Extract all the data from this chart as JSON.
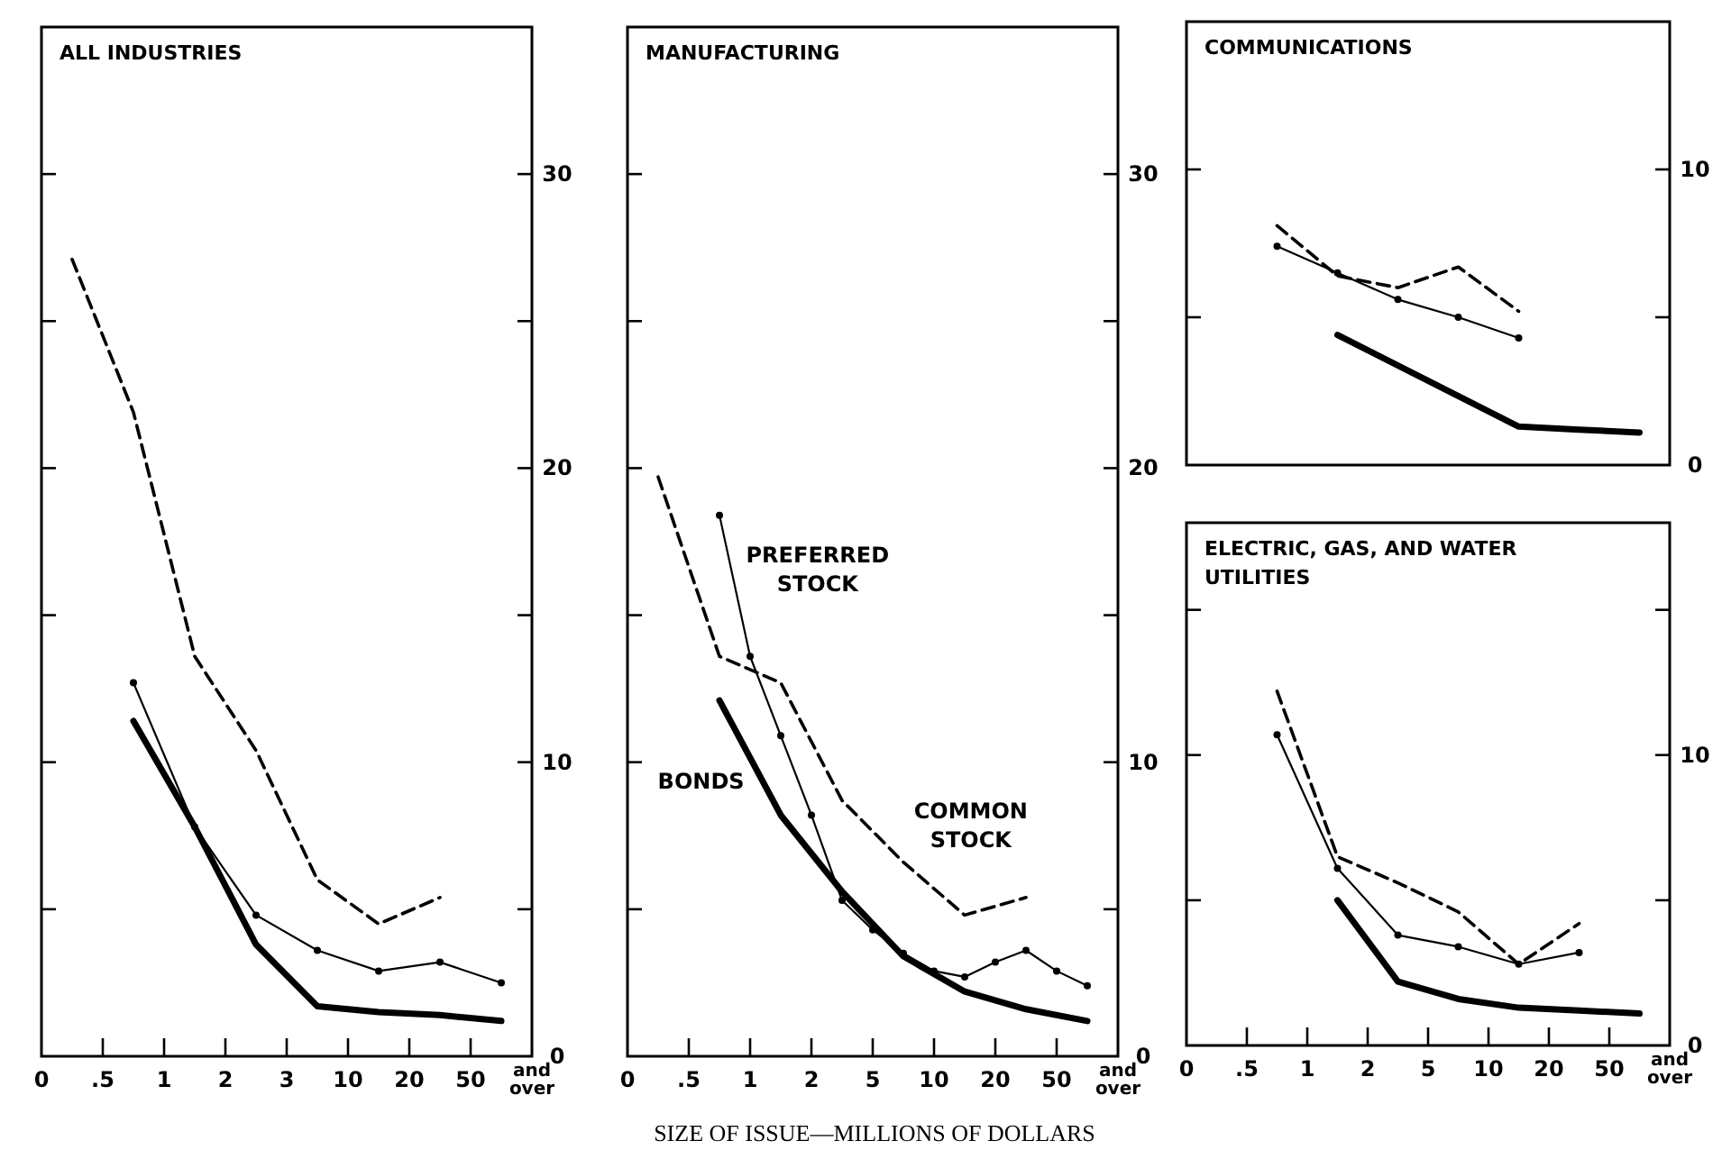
{
  "chart_data": [
    {
      "type": "line",
      "title": "ALL INDUSTRIES",
      "categories": [
        "0",
        null,
        ".5",
        null,
        "1",
        null,
        "2",
        null,
        "3",
        null,
        "10",
        null,
        "20",
        null,
        "50",
        null,
        "and over"
      ],
      "ylim": [
        0,
        35
      ],
      "yticks": [
        0,
        {
          "value": 5,
          "label": null
        },
        10,
        {
          "value": 15,
          "label": null
        },
        20,
        {
          "value": 25,
          "label": null
        },
        30
      ],
      "grid": false,
      "series": [
        {
          "color": "#000000",
          "line_style": "dashed",
          "values": [
            null,
            27.1,
            null,
            21.9,
            null,
            13.6,
            null,
            10.4,
            null,
            6.0,
            null,
            4.5,
            null,
            5.4,
            null,
            null,
            null
          ]
        },
        {
          "color": "#000000",
          "line_style": "solid",
          "marker": "circle",
          "values": [
            null,
            null,
            null,
            12.7,
            null,
            7.8,
            null,
            4.8,
            null,
            3.6,
            null,
            2.9,
            null,
            3.2,
            null,
            2.5,
            null
          ]
        },
        {
          "color": "#000000",
          "line_style": "solid",
          "values": [
            null,
            null,
            null,
            11.4,
            null,
            7.8,
            null,
            3.8,
            null,
            1.7,
            null,
            1.5,
            null,
            1.4,
            null,
            1.2,
            null
          ]
        }
      ]
    },
    {
      "type": "line",
      "title": "MANUFACTURING",
      "xlabel": "SIZE OF ISSUE—MILLIONS OF DOLLARS",
      "categories": [
        "0",
        null,
        ".5",
        null,
        "1",
        null,
        "2",
        null,
        "5",
        null,
        "10",
        null,
        "20",
        null,
        "50",
        null,
        "and over"
      ],
      "ylim": [
        0,
        35
      ],
      "yticks": [
        0,
        {
          "value": 5,
          "label": null
        },
        10,
        {
          "value": 15,
          "label": null
        },
        20,
        {
          "value": 25,
          "label": null
        },
        30
      ],
      "grid": false,
      "series": [
        {
          "name": "COMMON STOCK",
          "color": "#000000",
          "line_style": "dashed",
          "values": [
            null,
            19.7,
            null,
            13.6,
            null,
            12.7,
            null,
            8.7,
            null,
            6.6,
            null,
            4.8,
            null,
            5.4,
            null,
            null,
            null
          ]
        },
        {
          "name": "PREFERRED STOCK",
          "color": "#000000",
          "line_style": "solid",
          "marker": "circle",
          "values": [
            null,
            null,
            null,
            18.4,
            13.6,
            10.9,
            8.2,
            5.3,
            4.3,
            3.5,
            2.9,
            2.7,
            3.2,
            3.6,
            2.9,
            2.4,
            null
          ]
        },
        {
          "name": "BONDS",
          "color": "#000000",
          "line_style": "solid",
          "values": [
            null,
            null,
            null,
            12.1,
            null,
            8.2,
            null,
            5.6,
            null,
            3.4,
            null,
            2.2,
            null,
            1.6,
            null,
            1.2,
            null
          ]
        }
      ]
    },
    {
      "type": "line",
      "title": "COMMUNICATIONS",
      "categories": [
        null,
        null,
        null,
        null,
        null,
        null,
        null,
        null
      ],
      "ylim": [
        0,
        15
      ],
      "yticks": [
        0,
        {
          "value": 5,
          "label": null
        },
        10
      ],
      "grid": false,
      "series": [
        {
          "color": "#000000",
          "line_style": "dashed",
          "values": [
            null,
            8.1,
            6.4,
            6.0,
            6.7,
            5.2,
            null,
            null
          ]
        },
        {
          "color": "#000000",
          "line_style": "solid",
          "marker": "circle",
          "values": [
            null,
            7.4,
            6.5,
            5.6,
            5.0,
            4.3,
            null,
            null
          ]
        },
        {
          "color": "#000000",
          "line_style": "solid",
          "values": [
            null,
            null,
            4.4,
            null,
            null,
            1.3,
            1.2,
            1.1
          ]
        }
      ]
    },
    {
      "type": "line",
      "title": "ELECTRIC, GAS, AND WATER UTILITIES",
      "categories": [
        "0",
        null,
        ".5",
        null,
        "1",
        null,
        "2",
        null,
        "5",
        null,
        "10",
        null,
        "20",
        null,
        "50",
        null,
        "and over"
      ],
      "ylim": [
        0,
        18
      ],
      "yticks": [
        0,
        {
          "value": 5,
          "label": null
        },
        10,
        {
          "value": 15,
          "label": null
        }
      ],
      "grid": false,
      "series": [
        {
          "color": "#000000",
          "line_style": "dashed",
          "values": [
            null,
            null,
            null,
            12.2,
            null,
            6.5,
            null,
            5.6,
            null,
            4.6,
            null,
            2.8,
            null,
            4.2,
            null,
            null,
            null
          ]
        },
        {
          "color": "#000000",
          "line_style": "solid",
          "marker": "circle",
          "values": [
            null,
            null,
            null,
            10.7,
            null,
            6.1,
            null,
            3.8,
            null,
            3.4,
            null,
            2.8,
            null,
            3.2,
            null,
            null,
            null
          ]
        },
        {
          "color": "#000000",
          "line_style": "solid",
          "values": [
            null,
            null,
            null,
            null,
            null,
            5.0,
            null,
            2.2,
            null,
            1.6,
            null,
            1.3,
            null,
            1.2,
            null,
            1.1,
            null
          ]
        }
      ]
    }
  ]
}
